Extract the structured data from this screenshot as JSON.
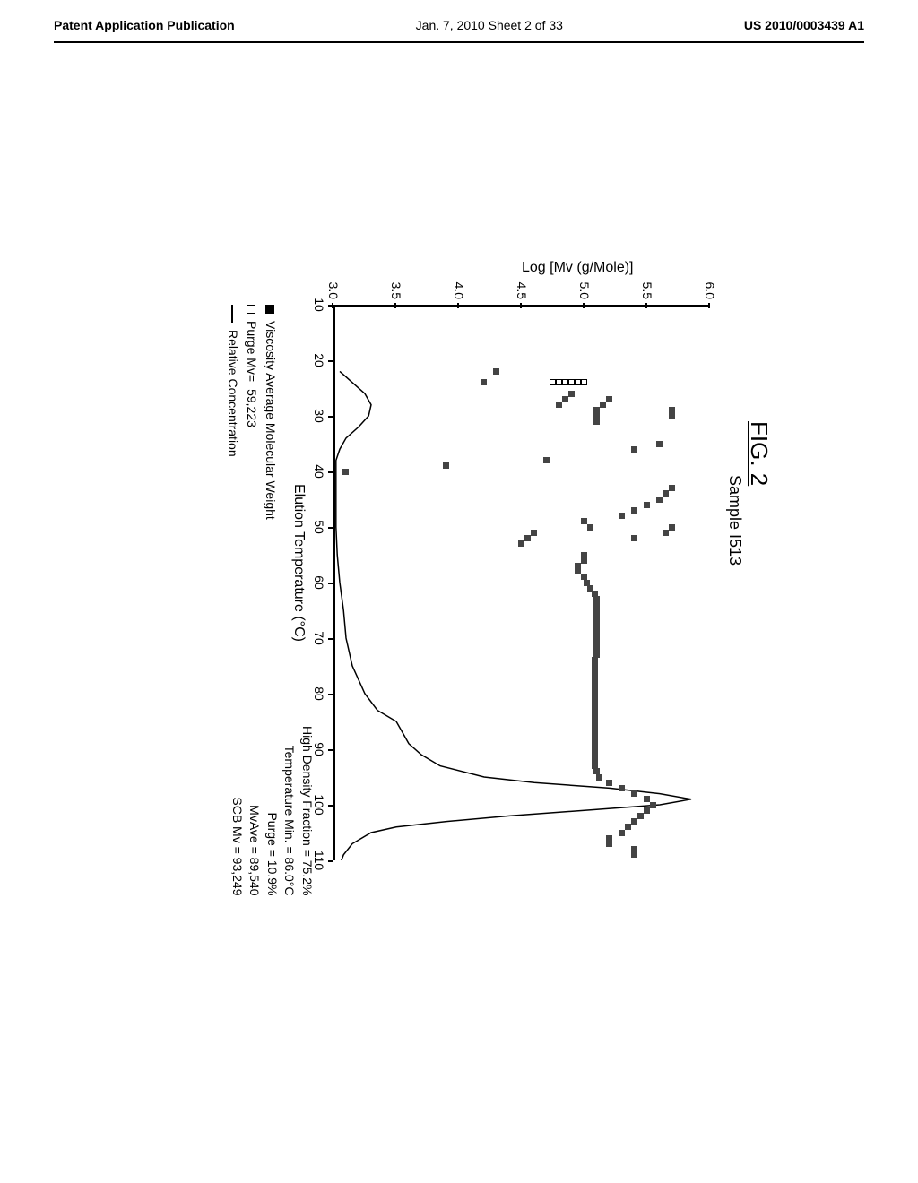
{
  "header": {
    "left": "Patent Application Publication",
    "center": "Jan. 7, 2010   Sheet 2 of 33",
    "right": "US 2010/0003439 A1"
  },
  "figure": {
    "title": "FIG. 2",
    "sample": "Sample I513",
    "y_axis_label": "Log [Mv (g/Mole)]",
    "x_axis_label": "Elution Temperature (°C)",
    "y_ticks": [
      "3.0",
      "3.5",
      "4.0",
      "4.5",
      "5.0",
      "5.5",
      "6.0"
    ],
    "x_ticks": [
      "10",
      "20",
      "30",
      "40",
      "50",
      "60",
      "70",
      "80",
      "90",
      "100",
      "110"
    ],
    "y_range": [
      3.0,
      6.0
    ],
    "x_range": [
      10,
      110
    ]
  },
  "legend": {
    "item1": "Viscosity Average Molecular Weight",
    "item2_label": "Purge Mv=",
    "item2_value": "59,223",
    "item3": "Relative Concentration"
  },
  "stats": {
    "hd_fraction_label": "High Density Fraction =",
    "hd_fraction_value": "75.2%",
    "temp_min_label": "Temperature Min. =",
    "temp_min_value": "86.0°C",
    "purge_label": "Purge =",
    "purge_value": "10.9%",
    "mvave_label": "MvAve =",
    "mvave_value": "89,540",
    "scb_label": "SCB Mv =",
    "scb_value": "93,249"
  },
  "scatter_filled": [
    [
      29,
      5.7
    ],
    [
      30,
      5.7
    ],
    [
      35,
      5.6
    ],
    [
      36,
      5.4
    ],
    [
      27,
      5.2
    ],
    [
      28,
      5.15
    ],
    [
      29,
      5.1
    ],
    [
      30,
      5.1
    ],
    [
      31,
      5.1
    ],
    [
      26,
      4.9
    ],
    [
      27,
      4.85
    ],
    [
      28,
      4.8
    ],
    [
      22,
      4.3
    ],
    [
      24,
      4.2
    ],
    [
      38,
      4.7
    ],
    [
      39,
      3.9
    ],
    [
      40,
      3.1
    ],
    [
      43,
      5.7
    ],
    [
      44,
      5.65
    ],
    [
      45,
      5.6
    ],
    [
      46,
      5.5
    ],
    [
      47,
      5.4
    ],
    [
      48,
      5.3
    ],
    [
      49,
      5.0
    ],
    [
      50,
      5.05
    ],
    [
      51,
      4.6
    ],
    [
      52,
      4.55
    ],
    [
      53,
      4.5
    ],
    [
      50,
      5.7
    ],
    [
      51,
      5.65
    ],
    [
      52,
      5.4
    ],
    [
      55,
      5.0
    ],
    [
      56,
      5.0
    ],
    [
      57,
      4.95
    ],
    [
      58,
      4.95
    ],
    [
      59,
      5.0
    ],
    [
      60,
      5.02
    ],
    [
      61,
      5.05
    ],
    [
      62,
      5.08
    ],
    [
      63,
      5.1
    ],
    [
      64,
      5.1
    ],
    [
      65,
      5.1
    ],
    [
      66,
      5.1
    ],
    [
      67,
      5.1
    ],
    [
      68,
      5.1
    ],
    [
      69,
      5.1
    ],
    [
      70,
      5.1
    ],
    [
      71,
      5.1
    ],
    [
      72,
      5.1
    ],
    [
      73,
      5.1
    ],
    [
      74,
      5.08
    ],
    [
      75,
      5.08
    ],
    [
      76,
      5.08
    ],
    [
      77,
      5.08
    ],
    [
      78,
      5.08
    ],
    [
      79,
      5.08
    ],
    [
      80,
      5.08
    ],
    [
      81,
      5.08
    ],
    [
      82,
      5.08
    ],
    [
      83,
      5.08
    ],
    [
      84,
      5.08
    ],
    [
      85,
      5.08
    ],
    [
      86,
      5.08
    ],
    [
      87,
      5.08
    ],
    [
      88,
      5.08
    ],
    [
      89,
      5.08
    ],
    [
      90,
      5.08
    ],
    [
      91,
      5.08
    ],
    [
      92,
      5.08
    ],
    [
      93,
      5.08
    ],
    [
      94,
      5.1
    ],
    [
      95,
      5.12
    ],
    [
      96,
      5.2
    ],
    [
      97,
      5.3
    ],
    [
      98,
      5.4
    ],
    [
      99,
      5.5
    ],
    [
      100,
      5.55
    ],
    [
      101,
      5.5
    ],
    [
      102,
      5.45
    ],
    [
      103,
      5.4
    ],
    [
      104,
      5.35
    ],
    [
      105,
      5.3
    ],
    [
      106,
      5.2
    ],
    [
      107,
      5.2
    ],
    [
      108,
      5.4
    ],
    [
      109,
      5.4
    ]
  ],
  "scatter_open": [
    [
      24,
      5.0
    ],
    [
      24,
      4.95
    ],
    [
      24,
      4.9
    ],
    [
      24,
      4.85
    ],
    [
      24,
      4.8
    ],
    [
      24,
      4.75
    ]
  ],
  "curve": [
    [
      22,
      3.05
    ],
    [
      24,
      3.15
    ],
    [
      26,
      3.25
    ],
    [
      28,
      3.3
    ],
    [
      30,
      3.28
    ],
    [
      32,
      3.2
    ],
    [
      34,
      3.1
    ],
    [
      36,
      3.05
    ],
    [
      38,
      3.02
    ],
    [
      40,
      3.02
    ],
    [
      45,
      3.02
    ],
    [
      50,
      3.02
    ],
    [
      55,
      3.03
    ],
    [
      60,
      3.05
    ],
    [
      65,
      3.08
    ],
    [
      70,
      3.1
    ],
    [
      75,
      3.15
    ],
    [
      80,
      3.25
    ],
    [
      83,
      3.35
    ],
    [
      85,
      3.5
    ],
    [
      87,
      3.55
    ],
    [
      89,
      3.6
    ],
    [
      91,
      3.7
    ],
    [
      93,
      3.85
    ],
    [
      95,
      4.2
    ],
    [
      96,
      4.6
    ],
    [
      97,
      5.2
    ],
    [
      98,
      5.6
    ],
    [
      99,
      5.85
    ],
    [
      100,
      5.6
    ],
    [
      101,
      5.0
    ],
    [
      102,
      4.4
    ],
    [
      103,
      3.9
    ],
    [
      104,
      3.5
    ],
    [
      105,
      3.3
    ],
    [
      107,
      3.15
    ],
    [
      109,
      3.08
    ],
    [
      112,
      3.03
    ]
  ]
}
